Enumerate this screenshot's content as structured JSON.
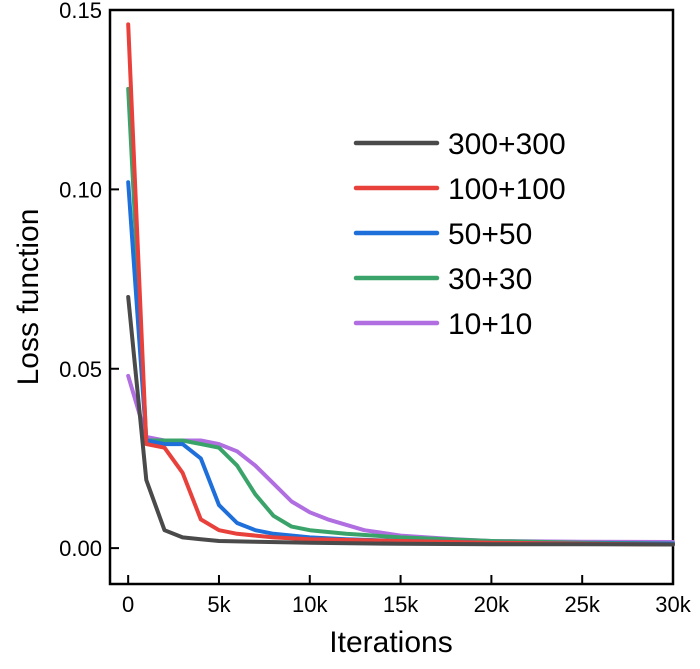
{
  "chart_data": {
    "type": "line",
    "title": "",
    "xlabel": "Iterations",
    "ylabel": "Loss function",
    "xlim": [
      -1000,
      30000
    ],
    "ylim": [
      -0.01,
      0.15
    ],
    "x_ticks": [
      0,
      5000,
      10000,
      15000,
      20000,
      25000,
      30000
    ],
    "x_tick_labels": [
      "0",
      "5k",
      "10k",
      "15k",
      "20k",
      "25k",
      "30k"
    ],
    "y_ticks": [
      0.0,
      0.05,
      0.1,
      0.15
    ],
    "y_tick_labels": [
      "0.00",
      "0.05",
      "0.10",
      "0.15"
    ],
    "grid": false,
    "legend_position": "top-right",
    "series": [
      {
        "name": "300+300",
        "color": "#4a4a4a",
        "x": [
          0,
          1000,
          2000,
          3000,
          4000,
          5000,
          7000,
          10000,
          15000,
          20000,
          25000,
          30000
        ],
        "y": [
          0.07,
          0.019,
          0.005,
          0.003,
          0.0025,
          0.002,
          0.0018,
          0.0015,
          0.0012,
          0.0011,
          0.0011,
          0.001
        ]
      },
      {
        "name": "100+100",
        "color": "#e8413c",
        "x": [
          0,
          1000,
          2000,
          3000,
          4000,
          5000,
          6000,
          8000,
          10000,
          15000,
          20000,
          25000,
          30000
        ],
        "y": [
          0.146,
          0.029,
          0.028,
          0.021,
          0.008,
          0.005,
          0.004,
          0.003,
          0.0025,
          0.002,
          0.0015,
          0.0012,
          0.001
        ]
      },
      {
        "name": "50+50",
        "color": "#1e6fd9",
        "x": [
          0,
          1000,
          2000,
          3000,
          4000,
          5000,
          6000,
          7000,
          8000,
          10000,
          12000,
          15000,
          20000,
          25000,
          30000
        ],
        "y": [
          0.102,
          0.03,
          0.029,
          0.029,
          0.025,
          0.012,
          0.007,
          0.005,
          0.004,
          0.003,
          0.0025,
          0.002,
          0.0015,
          0.0013,
          0.0012
        ]
      },
      {
        "name": "30+30",
        "color": "#3aa36a",
        "x": [
          0,
          1000,
          2000,
          3000,
          4000,
          5000,
          6000,
          7000,
          8000,
          9000,
          10000,
          12000,
          15000,
          20000,
          25000,
          30000
        ],
        "y": [
          0.128,
          0.03,
          0.03,
          0.03,
          0.029,
          0.028,
          0.023,
          0.015,
          0.009,
          0.006,
          0.005,
          0.004,
          0.003,
          0.002,
          0.0015,
          0.0013
        ]
      },
      {
        "name": "10+10",
        "color": "#b06ee0",
        "x": [
          0,
          1000,
          2000,
          3000,
          4000,
          5000,
          6000,
          7000,
          8000,
          9000,
          10000,
          11000,
          12000,
          13000,
          15000,
          18000,
          20000,
          25000,
          30000
        ],
        "y": [
          0.048,
          0.031,
          0.03,
          0.03,
          0.03,
          0.029,
          0.027,
          0.023,
          0.018,
          0.013,
          0.01,
          0.008,
          0.0065,
          0.005,
          0.0035,
          0.0025,
          0.002,
          0.0018,
          0.0017
        ]
      }
    ]
  }
}
